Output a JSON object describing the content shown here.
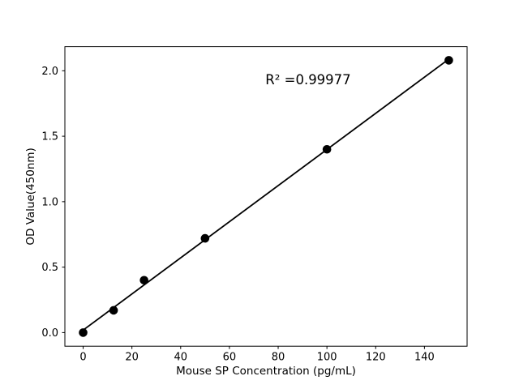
{
  "chart_data": {
    "type": "scatter",
    "title": "",
    "xlabel": "Mouse SP Concentration (pg/mL)",
    "ylabel": "OD Value(450nm)",
    "x": [
      0,
      12.5,
      25,
      50,
      100,
      150
    ],
    "y": [
      0.0,
      0.17,
      0.4,
      0.72,
      1.4,
      2.08
    ],
    "fit_line": {
      "x": [
        0,
        150
      ],
      "y": [
        0.019,
        2.089
      ]
    },
    "annotation": {
      "text": "R² =0.99977",
      "x": 92.3,
      "y": 1.93
    },
    "xlim": [
      -7.5,
      157.5
    ],
    "ylim": [
      -0.104,
      2.184
    ],
    "xticks": [
      0,
      20,
      40,
      60,
      80,
      100,
      120,
      140
    ],
    "xtick_labels": [
      "0",
      "20",
      "40",
      "60",
      "80",
      "100",
      "120",
      "140"
    ],
    "yticks": [
      0.0,
      0.5,
      1.0,
      1.5,
      2.0
    ],
    "ytick_labels": [
      "0.0",
      "0.5",
      "1.0",
      "1.5",
      "2.0"
    ],
    "grid": false,
    "legend": null,
    "marker_color": "#000000",
    "line_color": "#000000",
    "background_color": "#ffffff",
    "spine_color": "#000000"
  }
}
